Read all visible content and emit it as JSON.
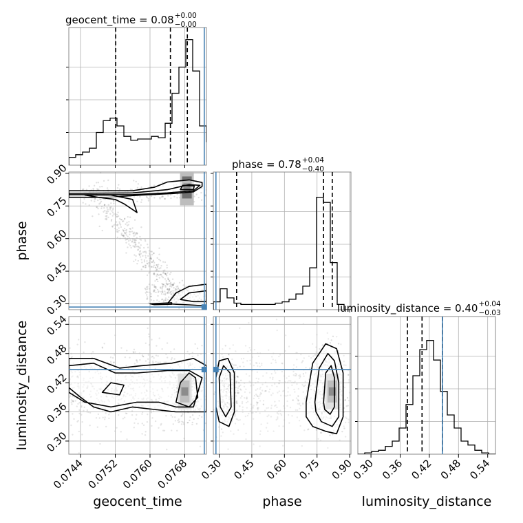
{
  "chart_data": {
    "type": "corner",
    "parameters": [
      "geocent_time",
      "phase",
      "luminosity_distance"
    ],
    "titles": [
      {
        "param": "geocent_time",
        "text": "geocent_time = 0.08",
        "sup": "+0.00",
        "sub": "−0.00"
      },
      {
        "param": "phase",
        "text": "phase = 0.78",
        "sup": "+0.04",
        "sub": "−0.40"
      },
      {
        "param": "luminosity_distance",
        "text": "luminosity_distance = 0.40",
        "sup": "+0.04",
        "sub": "−0.03"
      }
    ],
    "ranges": {
      "geocent_time": [
        0.07413,
        0.0773
      ],
      "phase": [
        0.273,
        0.906
      ],
      "luminosity_distance": [
        0.273,
        0.556
      ]
    },
    "ticks": {
      "geocent_time": [
        "0.0744",
        "0.0752",
        "0.0760",
        "0.0768"
      ],
      "phase": [
        "0.30",
        "0.45",
        "0.60",
        "0.75",
        "0.90"
      ],
      "luminosity_distance": [
        "0.30",
        "0.36",
        "0.42",
        "0.48",
        "0.54"
      ]
    },
    "quantile_lines": {
      "geocent_time": [
        0.07521,
        0.07647,
        0.07686
      ],
      "phase": [
        0.38,
        0.78,
        0.82
      ],
      "luminosity_distance": [
        0.375,
        0.405,
        0.447
      ]
    },
    "truth": {
      "geocent_time": 0.07725,
      "phase": 0.285,
      "luminosity_distance": 0.447
    },
    "histograms": {
      "geocent_time": {
        "edges_start": 0.07413,
        "bin_width": 0.0001585,
        "counts": [
          0.06,
          0.08,
          0.1,
          0.13,
          0.25,
          0.34,
          0.36,
          0.3,
          0.22,
          0.19,
          0.2,
          0.2,
          0.22,
          0.21,
          0.32,
          0.55,
          0.75,
          0.96,
          0.72,
          0.3,
          0.18
        ]
      },
      "phase": {
        "edges_start": 0.273,
        "bin_width": 0.03165,
        "counts": [
          0.06,
          0.16,
          0.09,
          0.05,
          0.04,
          0.04,
          0.04,
          0.04,
          0.04,
          0.05,
          0.06,
          0.08,
          0.12,
          0.18,
          0.32,
          0.86,
          0.82,
          0.36,
          0.04,
          0.0
        ]
      },
      "luminosity_distance": {
        "edges_start": 0.273,
        "bin_width": 0.01415,
        "counts": [
          0.0,
          0.01,
          0.02,
          0.03,
          0.06,
          0.1,
          0.2,
          0.38,
          0.6,
          0.8,
          0.87,
          0.72,
          0.48,
          0.3,
          0.2,
          0.1,
          0.07,
          0.03,
          0.01,
          0.0
        ]
      }
    },
    "contours": {
      "phase_vs_geocent_time": [
        {
          "level": "outer",
          "points": [
            [
              0.07413,
              0.82
            ],
            [
              0.0756,
              0.82
            ],
            [
              0.0761,
              0.836
            ],
            [
              0.0764,
              0.86
            ],
            [
              0.0769,
              0.87
            ],
            [
              0.0772,
              0.858
            ],
            [
              0.0772,
              0.84
            ],
            [
              0.077,
              0.815
            ],
            [
              0.0766,
              0.808
            ],
            [
              0.0758,
              0.8
            ],
            [
              0.075,
              0.79
            ],
            [
              0.0745,
              0.79
            ],
            [
              0.07413,
              0.79
            ]
          ]
        },
        {
          "level": "outer",
          "points": [
            [
              0.0745,
              0.8
            ],
            [
              0.0748,
              0.79
            ],
            [
              0.0752,
              0.78
            ],
            [
              0.0754,
              0.76
            ],
            [
              0.0757,
              0.72
            ],
            [
              0.0756,
              0.78
            ],
            [
              0.0751,
              0.8
            ]
          ]
        },
        {
          "level": "mid",
          "points": [
            [
              0.07413,
              0.808
            ],
            [
              0.0756,
              0.81
            ],
            [
              0.0764,
              0.825
            ],
            [
              0.0769,
              0.848
            ],
            [
              0.07715,
              0.845
            ],
            [
              0.077,
              0.82
            ],
            [
              0.0764,
              0.81
            ],
            [
              0.0756,
              0.802
            ],
            [
              0.07413,
              0.802
            ]
          ]
        },
        {
          "level": "inner",
          "points": [
            [
              0.0767,
              0.825
            ],
            [
              0.077,
              0.826
            ],
            [
              0.07702,
              0.842
            ],
            [
              0.07675,
              0.845
            ]
          ]
        },
        {
          "level": "outer",
          "points": [
            [
              0.0764,
              0.3
            ],
            [
              0.0766,
              0.35
            ],
            [
              0.0769,
              0.38
            ],
            [
              0.0773,
              0.39
            ],
            [
              0.0773,
              0.29
            ],
            [
              0.0769,
              0.295
            ]
          ]
        },
        {
          "level": "mid",
          "points": [
            [
              0.0767,
              0.32
            ],
            [
              0.0769,
              0.35
            ],
            [
              0.0773,
              0.36
            ],
            [
              0.0773,
              0.31
            ],
            [
              0.077,
              0.31
            ]
          ]
        },
        {
          "level": "outer",
          "points": [
            [
              0.076,
              0.3
            ],
            [
              0.0765,
              0.305
            ],
            [
              0.0765,
              0.298
            ],
            [
              0.0761,
              0.296
            ]
          ]
        }
      ],
      "luminosity_distance_vs_geocent_time": [
        {
          "level": "outer",
          "points": [
            [
              0.07413,
              0.47
            ],
            [
              0.0747,
              0.47
            ],
            [
              0.0753,
              0.45
            ],
            [
              0.0758,
              0.455
            ],
            [
              0.0765,
              0.46
            ],
            [
              0.077,
              0.47
            ],
            [
              0.0773,
              0.455
            ],
            [
              0.0773,
              0.36
            ],
            [
              0.077,
              0.36
            ],
            [
              0.0766,
              0.36
            ],
            [
              0.0761,
              0.365
            ],
            [
              0.0756,
              0.37
            ],
            [
              0.0751,
              0.36
            ],
            [
              0.0747,
              0.37
            ],
            [
              0.0744,
              0.39
            ],
            [
              0.07413,
              0.41
            ]
          ]
        },
        {
          "level": "mid",
          "points": [
            [
              0.07413,
              0.455
            ],
            [
              0.0747,
              0.46
            ],
            [
              0.0752,
              0.44
            ],
            [
              0.0757,
              0.44
            ],
            [
              0.0764,
              0.445
            ],
            [
              0.0769,
              0.445
            ],
            [
              0.0772,
              0.43
            ],
            [
              0.077,
              0.37
            ],
            [
              0.0766,
              0.37
            ],
            [
              0.0762,
              0.38
            ],
            [
              0.0757,
              0.38
            ],
            [
              0.0751,
              0.37
            ],
            [
              0.0745,
              0.38
            ],
            [
              0.07413,
              0.4
            ]
          ]
        },
        {
          "level": "inner",
          "points": [
            [
              0.0766,
              0.38
            ],
            [
              0.0767,
              0.42
            ],
            [
              0.0769,
              0.44
            ],
            [
              0.07705,
              0.43
            ],
            [
              0.0771,
              0.39
            ],
            [
              0.0769,
              0.37
            ]
          ]
        },
        {
          "level": "inner",
          "points": [
            [
              0.0749,
              0.4
            ],
            [
              0.0751,
              0.42
            ],
            [
              0.0754,
              0.415
            ],
            [
              0.0753,
              0.395
            ]
          ]
        }
      ],
      "luminosity_distance_vs_phase": [
        {
          "level": "outer",
          "points": [
            [
              0.285,
              0.43
            ],
            [
              0.3,
              0.465
            ],
            [
              0.34,
              0.47
            ],
            [
              0.37,
              0.44
            ],
            [
              0.37,
              0.36
            ],
            [
              0.345,
              0.33
            ],
            [
              0.3,
              0.34
            ],
            [
              0.285,
              0.37
            ]
          ]
        },
        {
          "level": "mid",
          "points": [
            [
              0.3,
              0.43
            ],
            [
              0.32,
              0.455
            ],
            [
              0.35,
              0.44
            ],
            [
              0.355,
              0.37
            ],
            [
              0.33,
              0.35
            ],
            [
              0.305,
              0.37
            ]
          ]
        },
        {
          "level": "outer",
          "points": [
            [
              0.7,
              0.38
            ],
            [
              0.73,
              0.46
            ],
            [
              0.79,
              0.5
            ],
            [
              0.84,
              0.49
            ],
            [
              0.87,
              0.44
            ],
            [
              0.87,
              0.35
            ],
            [
              0.84,
              0.315
            ],
            [
              0.79,
              0.32
            ],
            [
              0.73,
              0.33
            ],
            [
              0.7,
              0.35
            ]
          ]
        },
        {
          "level": "mid",
          "points": [
            [
              0.74,
              0.38
            ],
            [
              0.76,
              0.45
            ],
            [
              0.8,
              0.48
            ],
            [
              0.83,
              0.465
            ],
            [
              0.85,
              0.42
            ],
            [
              0.85,
              0.35
            ],
            [
              0.82,
              0.33
            ],
            [
              0.77,
              0.34
            ],
            [
              0.745,
              0.36
            ]
          ]
        },
        {
          "level": "inner",
          "points": [
            [
              0.78,
              0.38
            ],
            [
              0.79,
              0.44
            ],
            [
              0.815,
              0.455
            ],
            [
              0.83,
              0.43
            ],
            [
              0.83,
              0.37
            ],
            [
              0.81,
              0.355
            ],
            [
              0.785,
              0.365
            ]
          ]
        }
      ]
    },
    "density_peaks": {
      "phase_vs_geocent_time": [
        [
          0.07685,
          0.835
        ]
      ],
      "luminosity_distance_vs_geocent_time": [
        [
          0.0768,
          0.402
        ]
      ],
      "luminosity_distance_vs_phase": [
        [
          0.82,
          0.402
        ]
      ]
    },
    "grid": true
  }
}
